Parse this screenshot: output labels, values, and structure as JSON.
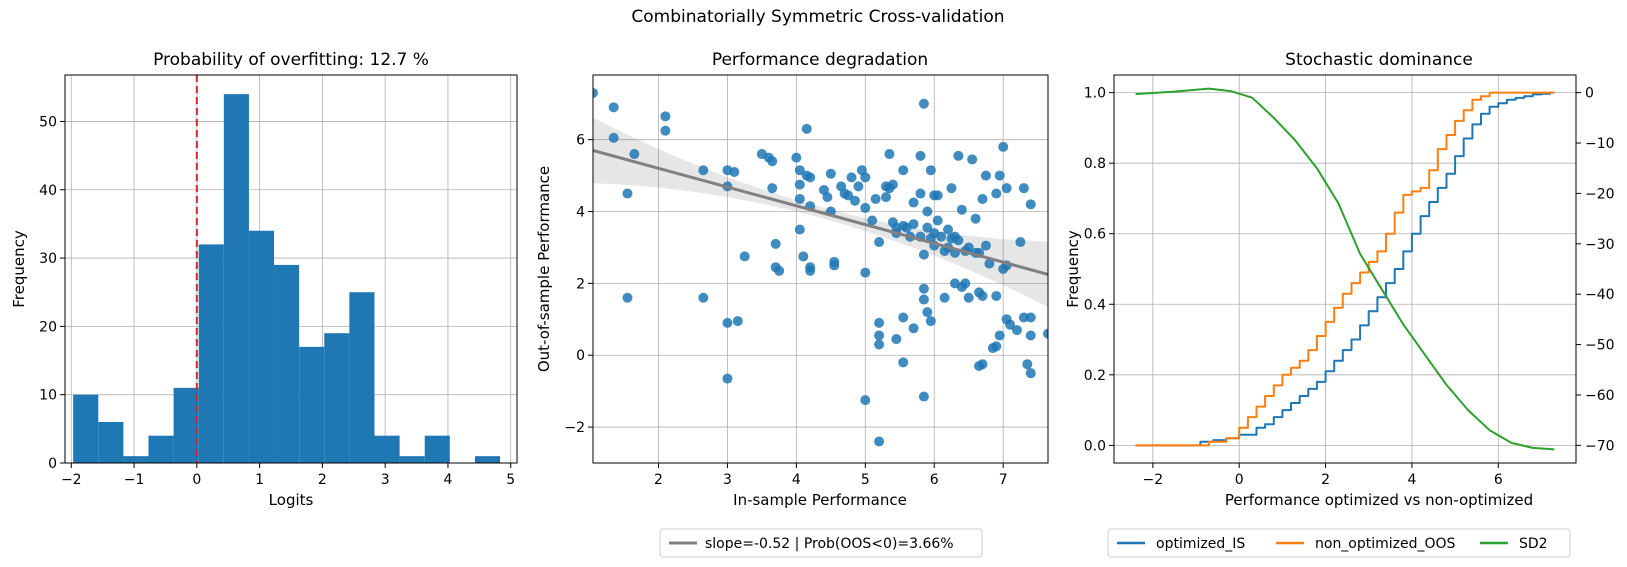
{
  "figure": {
    "suptitle": "Combinatorially Symmetric Cross-validation"
  },
  "colors": {
    "blue": "#1f77b4",
    "orange": "#ff7f0e",
    "green": "#2ca02c",
    "red": "#d62728",
    "gray": "#808080"
  },
  "chart_data": [
    {
      "type": "bar",
      "title": "Probability of overfitting: 12.7 %",
      "xlabel": "Logits",
      "ylabel": "Frequency",
      "xlim": [
        -2.1,
        5.1
      ],
      "ylim": [
        0,
        56.8
      ],
      "xticks": [
        -2,
        -1,
        0,
        1,
        2,
        3,
        4,
        5
      ],
      "yticks": [
        0,
        10,
        20,
        30,
        40,
        50
      ],
      "vline": 0,
      "bins": [
        {
          "x0": -1.97,
          "x1": -1.57,
          "value": 10
        },
        {
          "x0": -1.57,
          "x1": -1.17,
          "value": 6
        },
        {
          "x0": -1.17,
          "x1": -0.77,
          "value": 1
        },
        {
          "x0": -0.77,
          "x1": -0.37,
          "value": 4
        },
        {
          "x0": -0.37,
          "x1": 0.03,
          "value": 11
        },
        {
          "x0": 0.03,
          "x1": 0.43,
          "value": 32
        },
        {
          "x0": 0.43,
          "x1": 0.83,
          "value": 54
        },
        {
          "x0": 0.83,
          "x1": 1.23,
          "value": 34
        },
        {
          "x0": 1.23,
          "x1": 1.63,
          "value": 29
        },
        {
          "x0": 1.63,
          "x1": 2.03,
          "value": 17
        },
        {
          "x0": 2.03,
          "x1": 2.43,
          "value": 19
        },
        {
          "x0": 2.43,
          "x1": 2.83,
          "value": 25
        },
        {
          "x0": 2.83,
          "x1": 3.23,
          "value": 4
        },
        {
          "x0": 3.23,
          "x1": 3.63,
          "value": 1
        },
        {
          "x0": 3.63,
          "x1": 4.03,
          "value": 4
        },
        {
          "x0": 4.03,
          "x1": 4.43,
          "value": 0
        },
        {
          "x0": 4.43,
          "x1": 4.83,
          "value": 1
        }
      ],
      "grid": true
    },
    {
      "type": "scatter",
      "title": "Performance degradation",
      "xlabel": "In-sample Performance",
      "ylabel": "Out-of-sample Performance",
      "xlim": [
        1.05,
        7.65
      ],
      "ylim": [
        -3.0,
        7.8
      ],
      "xticks": [
        2,
        3,
        4,
        5,
        6,
        7
      ],
      "yticks": [
        -2,
        0,
        2,
        4,
        6
      ],
      "legend": "slope=-0.52 | Prob(OOS<0)=3.66%",
      "legend_placement": "below",
      "regression": {
        "x0": 1.05,
        "y0": 5.7,
        "x1": 7.65,
        "y1": 2.25
      },
      "points": [
        [
          1.05,
          7.3
        ],
        [
          1.35,
          6.9
        ],
        [
          1.35,
          6.05
        ],
        [
          1.55,
          4.5
        ],
        [
          1.55,
          1.6
        ],
        [
          1.65,
          5.6
        ],
        [
          2.1,
          6.65
        ],
        [
          2.1,
          6.25
        ],
        [
          2.65,
          5.15
        ],
        [
          2.65,
          1.6
        ],
        [
          3.0,
          4.7
        ],
        [
          3.0,
          5.15
        ],
        [
          3.0,
          0.9
        ],
        [
          3.0,
          -0.65
        ],
        [
          3.1,
          5.1
        ],
        [
          3.15,
          0.95
        ],
        [
          3.25,
          2.75
        ],
        [
          3.5,
          5.6
        ],
        [
          3.6,
          5.5
        ],
        [
          3.65,
          5.4
        ],
        [
          3.65,
          4.65
        ],
        [
          3.7,
          2.45
        ],
        [
          3.7,
          3.1
        ],
        [
          3.75,
          2.35
        ],
        [
          4.0,
          5.5
        ],
        [
          4.05,
          5.15
        ],
        [
          4.05,
          4.75
        ],
        [
          4.05,
          4.35
        ],
        [
          4.05,
          3.5
        ],
        [
          4.1,
          2.75
        ],
        [
          4.15,
          6.3
        ],
        [
          4.15,
          5.0
        ],
        [
          4.2,
          4.95
        ],
        [
          4.2,
          4.15
        ],
        [
          4.2,
          2.45
        ],
        [
          4.2,
          2.35
        ],
        [
          4.4,
          4.6
        ],
        [
          4.45,
          4.4
        ],
        [
          4.5,
          4.0
        ],
        [
          4.5,
          5.05
        ],
        [
          4.55,
          2.6
        ],
        [
          4.55,
          2.5
        ],
        [
          4.65,
          4.7
        ],
        [
          4.7,
          4.5
        ],
        [
          4.75,
          4.45
        ],
        [
          4.8,
          4.95
        ],
        [
          4.85,
          4.3
        ],
        [
          4.9,
          4.7
        ],
        [
          4.95,
          5.15
        ],
        [
          5.0,
          4.95
        ],
        [
          5.0,
          4.1
        ],
        [
          5.0,
          2.3
        ],
        [
          5.0,
          -1.25
        ],
        [
          5.1,
          3.75
        ],
        [
          5.15,
          4.35
        ],
        [
          5.2,
          3.15
        ],
        [
          5.2,
          0.9
        ],
        [
          5.2,
          0.55
        ],
        [
          5.2,
          0.3
        ],
        [
          5.2,
          -2.4
        ],
        [
          5.3,
          4.7
        ],
        [
          5.3,
          4.4
        ],
        [
          5.35,
          5.6
        ],
        [
          5.35,
          4.65
        ],
        [
          5.4,
          4.75
        ],
        [
          5.4,
          3.7
        ],
        [
          5.45,
          3.55
        ],
        [
          5.45,
          3.4
        ],
        [
          5.45,
          0.45
        ],
        [
          5.55,
          5.15
        ],
        [
          5.55,
          3.6
        ],
        [
          5.55,
          1.05
        ],
        [
          5.55,
          -0.2
        ],
        [
          5.6,
          3.55
        ],
        [
          5.65,
          3.3
        ],
        [
          5.7,
          4.25
        ],
        [
          5.7,
          3.65
        ],
        [
          5.7,
          0.75
        ],
        [
          5.8,
          5.55
        ],
        [
          5.8,
          4.5
        ],
        [
          5.8,
          3.3
        ],
        [
          5.85,
          7.0
        ],
        [
          5.85,
          2.8
        ],
        [
          5.85,
          1.85
        ],
        [
          5.85,
          1.55
        ],
        [
          5.85,
          -1.15
        ],
        [
          5.9,
          4.0
        ],
        [
          5.9,
          3.55
        ],
        [
          5.9,
          1.2
        ],
        [
          5.95,
          5.15
        ],
        [
          5.95,
          3.25
        ],
        [
          5.95,
          0.95
        ],
        [
          6.0,
          4.45
        ],
        [
          6.0,
          3.4
        ],
        [
          6.0,
          3.05
        ],
        [
          6.05,
          4.45
        ],
        [
          6.05,
          3.75
        ],
        [
          6.1,
          3.3
        ],
        [
          6.15,
          2.9
        ],
        [
          6.15,
          1.6
        ],
        [
          6.2,
          3.5
        ],
        [
          6.2,
          3.0
        ],
        [
          6.25,
          4.65
        ],
        [
          6.25,
          3.25
        ],
        [
          6.3,
          3.3
        ],
        [
          6.3,
          2.85
        ],
        [
          6.3,
          2.0
        ],
        [
          6.35,
          5.55
        ],
        [
          6.35,
          3.2
        ],
        [
          6.4,
          4.05
        ],
        [
          6.4,
          1.9
        ],
        [
          6.45,
          2.9
        ],
        [
          6.45,
          2.0
        ],
        [
          6.5,
          3.0
        ],
        [
          6.5,
          1.6
        ],
        [
          6.55,
          5.45
        ],
        [
          6.6,
          3.8
        ],
        [
          6.6,
          2.85
        ],
        [
          6.65,
          2.85
        ],
        [
          6.65,
          1.75
        ],
        [
          6.65,
          -0.3
        ],
        [
          6.7,
          4.35
        ],
        [
          6.7,
          1.65
        ],
        [
          6.7,
          -0.25
        ],
        [
          6.75,
          5.0
        ],
        [
          6.75,
          3.05
        ],
        [
          6.8,
          2.55
        ],
        [
          6.85,
          0.2
        ],
        [
          6.9,
          4.5
        ],
        [
          6.9,
          1.65
        ],
        [
          6.9,
          0.25
        ],
        [
          6.95,
          5.0
        ],
        [
          6.95,
          0.55
        ],
        [
          7.0,
          5.8
        ],
        [
          7.0,
          2.4
        ],
        [
          7.05,
          4.65
        ],
        [
          7.05,
          2.5
        ],
        [
          7.05,
          1.0
        ],
        [
          7.1,
          0.85
        ],
        [
          7.2,
          0.7
        ],
        [
          7.25,
          3.15
        ],
        [
          7.3,
          4.65
        ],
        [
          7.3,
          1.05
        ],
        [
          7.35,
          -0.25
        ],
        [
          7.4,
          4.2
        ],
        [
          7.4,
          1.05
        ],
        [
          7.4,
          0.55
        ],
        [
          7.4,
          -0.5
        ],
        [
          7.65,
          0.6
        ]
      ],
      "grid": true
    },
    {
      "type": "line",
      "title": "Stochastic dominance",
      "xlabel": "Performance optimized vs non-optimized",
      "ylabel": "Frequency",
      "xlim": [
        -2.9,
        7.8
      ],
      "ylim": [
        -0.05,
        1.05
      ],
      "y2lim": [
        -73.5,
        3.5
      ],
      "xticks": [
        -2,
        0,
        2,
        4,
        6
      ],
      "yticks": [
        0.0,
        0.2,
        0.4,
        0.6,
        0.8,
        1.0
      ],
      "y2ticks": [
        0,
        -10,
        -20,
        -30,
        -40,
        -50,
        -60,
        -70
      ],
      "legend_placement": "below",
      "series": [
        {
          "name": "optimized_IS",
          "color": "#1f77b4",
          "axis": "left",
          "step": true,
          "x": [
            -2.4,
            -0.9,
            -0.6,
            -0.3,
            0.0,
            0.4,
            0.6,
            0.8,
            1.0,
            1.2,
            1.4,
            1.6,
            1.8,
            2.0,
            2.2,
            2.4,
            2.6,
            2.8,
            3.0,
            3.2,
            3.4,
            3.6,
            3.8,
            4.0,
            4.2,
            4.4,
            4.6,
            4.8,
            5.0,
            5.2,
            5.4,
            5.6,
            5.8,
            6.0,
            6.2,
            6.4,
            6.6,
            6.8,
            7.0,
            7.2,
            7.3
          ],
          "y": [
            0.0,
            0.01,
            0.015,
            0.02,
            0.03,
            0.05,
            0.06,
            0.08,
            0.1,
            0.12,
            0.14,
            0.16,
            0.18,
            0.21,
            0.24,
            0.27,
            0.3,
            0.34,
            0.38,
            0.42,
            0.46,
            0.5,
            0.55,
            0.6,
            0.65,
            0.69,
            0.73,
            0.77,
            0.82,
            0.87,
            0.91,
            0.94,
            0.96,
            0.97,
            0.98,
            0.985,
            0.99,
            0.995,
            0.997,
            1.0,
            1.0
          ]
        },
        {
          "name": "non_optimized_OOS",
          "color": "#ff7f0e",
          "axis": "left",
          "step": true,
          "x": [
            -2.4,
            -0.7,
            -0.3,
            0.0,
            0.2,
            0.4,
            0.6,
            0.8,
            1.0,
            1.2,
            1.4,
            1.6,
            1.8,
            2.0,
            2.2,
            2.4,
            2.6,
            2.8,
            3.0,
            3.2,
            3.4,
            3.6,
            3.8,
            4.0,
            4.2,
            4.4,
            4.6,
            4.8,
            5.0,
            5.2,
            5.4,
            5.6,
            5.8,
            6.0,
            6.5,
            7.3
          ],
          "y": [
            0.0,
            0.01,
            0.02,
            0.05,
            0.08,
            0.11,
            0.14,
            0.17,
            0.2,
            0.22,
            0.24,
            0.27,
            0.31,
            0.35,
            0.39,
            0.43,
            0.46,
            0.49,
            0.52,
            0.55,
            0.6,
            0.66,
            0.71,
            0.72,
            0.73,
            0.78,
            0.84,
            0.88,
            0.92,
            0.95,
            0.98,
            0.99,
            1.0,
            1.0,
            1.0,
            1.0
          ]
        },
        {
          "name": "SD2",
          "color": "#2ca02c",
          "axis": "right",
          "step": false,
          "x": [
            -2.4,
            -1.5,
            -0.7,
            -0.2,
            0.3,
            0.8,
            1.3,
            1.8,
            2.3,
            2.8,
            3.3,
            3.8,
            4.3,
            4.8,
            5.3,
            5.8,
            6.3,
            6.8,
            7.3
          ],
          "y": [
            -0.3,
            0.2,
            0.8,
            0.3,
            -1.0,
            -5.0,
            -9.5,
            -15.0,
            -22.0,
            -32.0,
            -39.0,
            -46.0,
            -52.0,
            -58.0,
            -63.0,
            -67.0,
            -69.5,
            -70.5,
            -70.8
          ]
        }
      ],
      "grid": true
    }
  ]
}
